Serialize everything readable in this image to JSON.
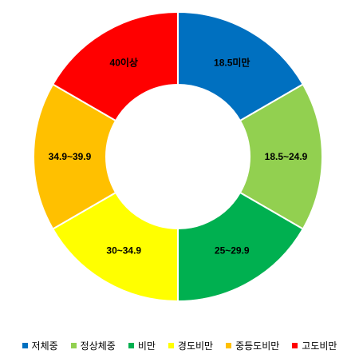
{
  "chart_data": {
    "type": "pie",
    "subtype": "donut",
    "categories": [
      "저체중",
      "정상체중",
      "비만",
      "경도비만",
      "중등도비만",
      "고도비만"
    ],
    "slice_labels": [
      "18.5미만",
      "18.5~24.9",
      "25~29.9",
      "30~34.9",
      "34.9~39.9",
      "40이상"
    ],
    "values": [
      1,
      1,
      1,
      1,
      1,
      1
    ],
    "colors": [
      "#0070C0",
      "#92D050",
      "#00B050",
      "#FFFF00",
      "#FFC000",
      "#FF0000"
    ],
    "legend_position": "bottom"
  }
}
